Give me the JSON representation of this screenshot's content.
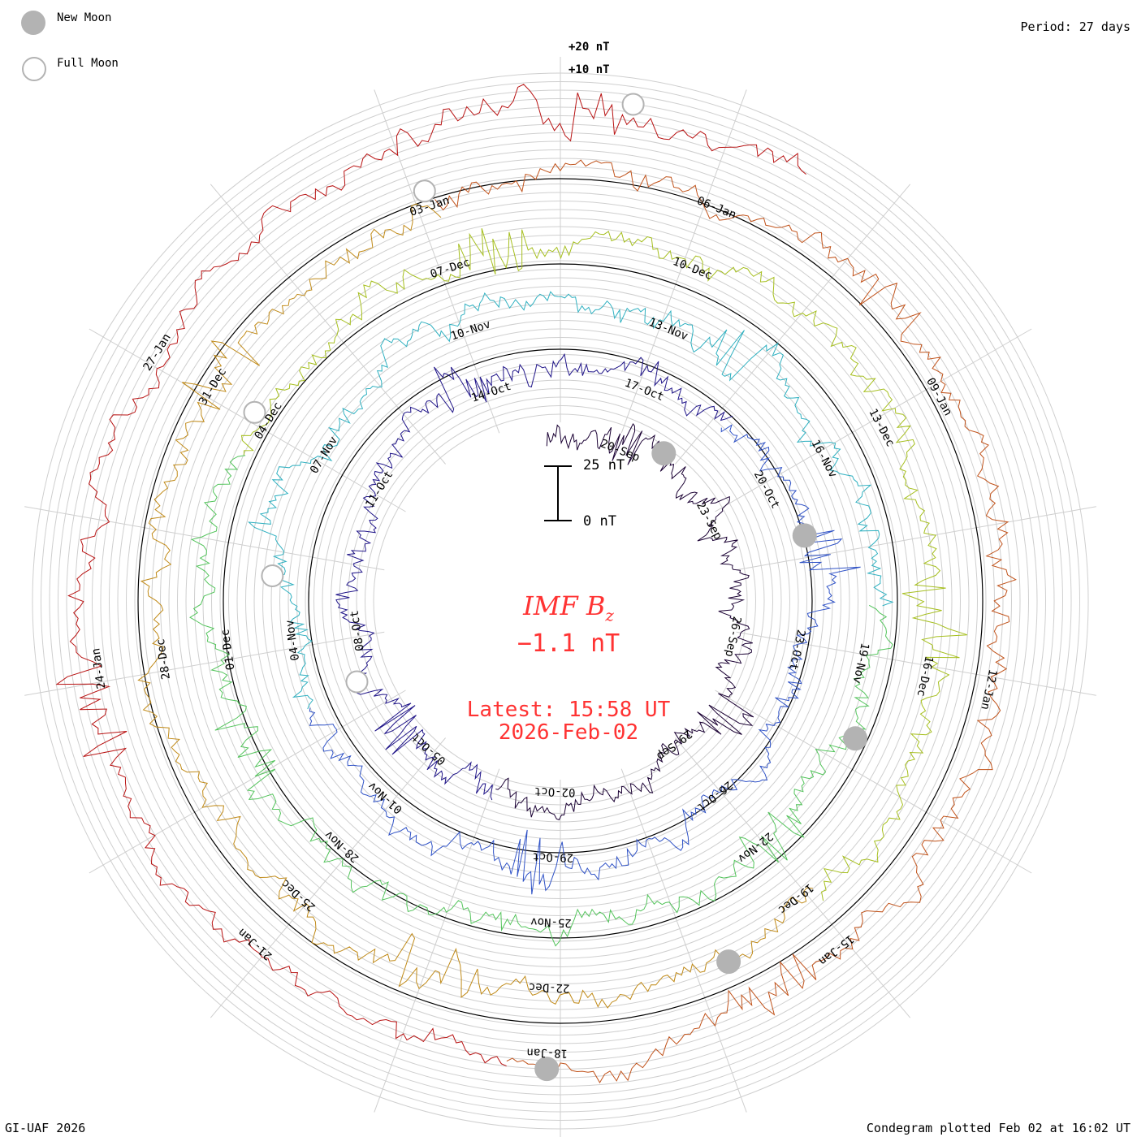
{
  "legend": {
    "new_moon": "New Moon",
    "full_moon": "Full Moon"
  },
  "period_label": "Period: 27 days",
  "footer": {
    "left": "GI-UAF 2026",
    "right": "Condegram plotted Feb 02 at 16:02 UT"
  },
  "center": {
    "parameter_main": "IMF B",
    "parameter_sub": "z",
    "value": "−1.1 nT",
    "latest": "Latest: 15:58 UT",
    "date": "2026-Feb-02"
  },
  "scale_bar": {
    "top_label": "25 nT",
    "bottom_label": "0 nT"
  },
  "chart_data": {
    "type": "condegram-spiral",
    "title": "IMF Bz",
    "units": "nT",
    "period_days": 27,
    "start": "2025-09-18",
    "end": "2026-02-02",
    "latest_value": -1.1,
    "offset_labels": [
      "+20 nT",
      "+10 nT"
    ],
    "scale_bar_nT": [
      0,
      25
    ],
    "date_labels": [
      "20-Sep",
      "23-Sep",
      "26-Sep",
      "29-Sep",
      "02-Oct",
      "05-Oct",
      "08-Oct",
      "11-Oct",
      "14-Oct",
      "17-Oct",
      "20-Oct",
      "23-Oct",
      "26-Oct",
      "29-Oct",
      "01-Nov",
      "04-Nov",
      "07-Nov",
      "10-Nov",
      "13-Nov",
      "16-Nov",
      "19-Nov",
      "22-Nov",
      "25-Nov",
      "28-Nov",
      "01-Dec",
      "04-Dec",
      "07-Dec",
      "10-Dec",
      "13-Dec",
      "16-Dec",
      "19-Dec",
      "22-Dec",
      "25-Dec",
      "28-Dec",
      "31-Dec",
      "03-Jan",
      "06-Jan",
      "09-Jan",
      "12-Jan",
      "15-Jan",
      "18-Jan",
      "21-Jan",
      "24-Jan",
      "27-Jan"
    ],
    "new_moons": [
      "2025-09-21",
      "2025-10-21",
      "2025-11-20",
      "2025-12-20",
      "2026-01-18"
    ],
    "full_moons": [
      "2025-10-07",
      "2025-11-05",
      "2025-12-04",
      "2026-01-03",
      "2026-02-01"
    ],
    "series_colors": [
      "#1a0033",
      "#1f1488",
      "#2f52c6",
      "#2fb0c0",
      "#54c45c",
      "#a6bf1f",
      "#c08a18",
      "#c0521a",
      "#b81212"
    ]
  }
}
